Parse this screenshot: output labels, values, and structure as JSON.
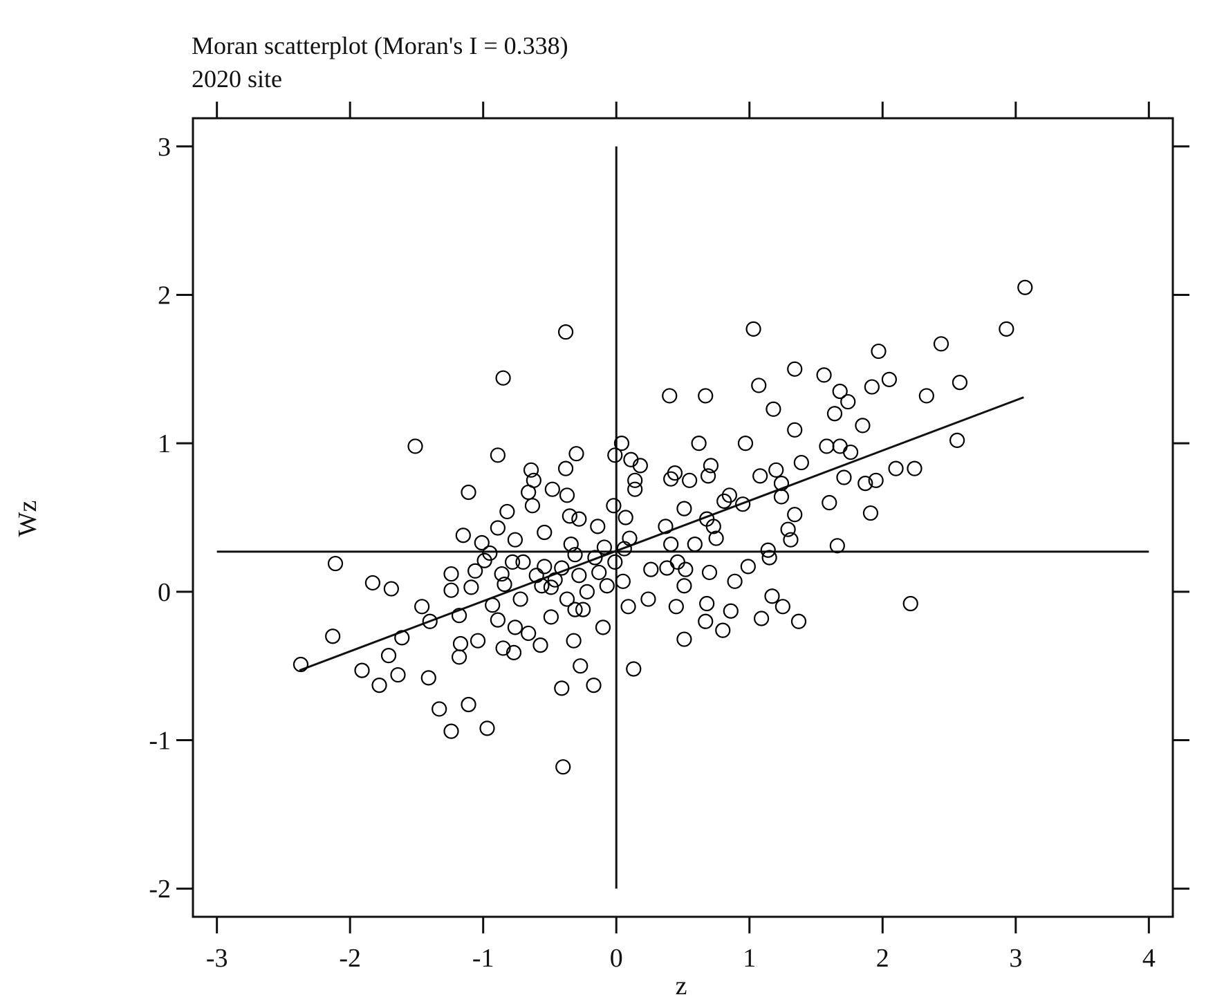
{
  "chart_data": {
    "type": "scatter",
    "title": "Moran scatterplot (Moran's I = 0.338)",
    "subtitle": "2020 site",
    "x_label": "z",
    "y_label": "Wz",
    "color": "#000000",
    "xlim": [
      -3.18,
      4.18
    ],
    "ylim": [
      -2.19,
      3.19
    ],
    "xticks": [
      -3,
      -2,
      -1,
      0,
      1,
      2,
      3,
      4
    ],
    "yticks": [
      -2,
      -1,
      0,
      1,
      2,
      3
    ],
    "vline": 0,
    "hline": 0.27,
    "fit_line": {
      "x": [
        -2.38,
        3.06
      ],
      "y": [
        -0.53,
        1.31
      ]
    },
    "x": [
      3.07,
      2.93,
      -0.38,
      1.03,
      -0.85,
      2.44,
      1.97,
      1.34,
      1.56,
      2.05,
      2.58,
      1.92,
      1.07,
      1.68,
      0.4,
      0.67,
      2.33,
      1.74,
      1.18,
      1.64,
      1.85,
      1.34,
      -1.51,
      0.04,
      0.62,
      0.97,
      1.58,
      1.68,
      2.56,
      1.76,
      -0.89,
      -0.3,
      -0.01,
      0.11,
      0.18,
      0.71,
      1.39,
      2.1,
      2.24,
      -0.38,
      -0.64,
      0.44,
      0.69,
      1.08,
      1.2,
      1.71,
      1.95,
      0.41,
      0.55,
      0.14,
      -0.62,
      1.87,
      0.14,
      1.24,
      -0.48,
      -1.11,
      -0.66,
      -0.37,
      0.85,
      0.81,
      1.24,
      1.6,
      -0.63,
      0.95,
      -0.02,
      0.51,
      1.34,
      1.91,
      -0.82,
      -0.35,
      -0.28,
      0.07,
      0.68,
      -0.14,
      0.37,
      1.29,
      -0.89,
      0.73,
      -1.15,
      -0.54,
      0.1,
      1.31,
      -0.76,
      0.75,
      -1.01,
      0.59,
      1.66,
      -0.34,
      0.41,
      1.14,
      -0.09,
      0.06,
      -0.95,
      1.15,
      -0.7,
      -2.11,
      0.46,
      0.99,
      -1.24,
      -1.06,
      0.7,
      -0.54,
      -0.41,
      0.26,
      0.38,
      0.52,
      -0.86,
      -0.28,
      -1.83,
      0.89,
      -1.69,
      -1.24,
      -1.09,
      0.51,
      -0.07,
      -0.49,
      1.17,
      2.21,
      -1.46,
      0.68,
      1.25,
      0.45,
      0.09,
      0.24,
      -1.18,
      0.86,
      -1.4,
      1.09,
      1.37,
      0.67,
      -0.89,
      -0.76,
      0.8,
      -0.1,
      -2.13,
      -1.61,
      -1.04,
      -0.32,
      0.51,
      -0.57,
      -0.85,
      -0.77,
      -1.71,
      -1.18,
      -2.37,
      -0.27,
      0.13,
      -1.91,
      -1.64,
      -1.41,
      -1.78,
      -0.41,
      -0.17,
      -1.33,
      -1.11,
      -0.97,
      -1.24,
      -0.4,
      -0.99,
      -0.84,
      -0.72,
      -0.6,
      -0.46,
      -0.37,
      -0.22,
      -0.13,
      -0.25,
      -0.49,
      -0.93,
      -0.78,
      -0.56,
      -0.31,
      -0.16,
      -0.01,
      0.05,
      -1.17,
      -0.66,
      -0.31
    ],
    "values": [
      2.05,
      1.77,
      1.75,
      1.77,
      1.44,
      1.67,
      1.62,
      1.5,
      1.46,
      1.43,
      1.41,
      1.38,
      1.39,
      1.35,
      1.32,
      1.32,
      1.32,
      1.28,
      1.23,
      1.2,
      1.12,
      1.09,
      0.98,
      1.0,
      1.0,
      1.0,
      0.98,
      0.98,
      1.02,
      0.94,
      0.92,
      0.93,
      0.92,
      0.89,
      0.85,
      0.85,
      0.87,
      0.83,
      0.83,
      0.83,
      0.82,
      0.8,
      0.78,
      0.78,
      0.82,
      0.77,
      0.75,
      0.76,
      0.75,
      0.75,
      0.75,
      0.73,
      0.69,
      0.73,
      0.69,
      0.67,
      0.67,
      0.65,
      0.65,
      0.61,
      0.64,
      0.6,
      0.58,
      0.59,
      0.58,
      0.56,
      0.52,
      0.53,
      0.54,
      0.51,
      0.49,
      0.5,
      0.49,
      0.44,
      0.44,
      0.42,
      0.43,
      0.44,
      0.38,
      0.4,
      0.36,
      0.35,
      0.35,
      0.36,
      0.33,
      0.32,
      0.31,
      0.32,
      0.32,
      0.28,
      0.3,
      0.29,
      0.26,
      0.23,
      0.2,
      0.19,
      0.2,
      0.17,
      0.12,
      0.14,
      0.13,
      0.17,
      0.16,
      0.15,
      0.16,
      0.15,
      0.12,
      0.11,
      0.06,
      0.07,
      0.02,
      0.01,
      0.03,
      0.04,
      0.04,
      0.03,
      -0.03,
      -0.08,
      -0.1,
      -0.08,
      -0.1,
      -0.1,
      -0.1,
      -0.05,
      -0.16,
      -0.13,
      -0.2,
      -0.18,
      -0.2,
      -0.2,
      -0.19,
      -0.24,
      -0.26,
      -0.24,
      -0.3,
      -0.31,
      -0.33,
      -0.33,
      -0.32,
      -0.36,
      -0.38,
      -0.41,
      -0.43,
      -0.44,
      -0.49,
      -0.5,
      -0.52,
      -0.53,
      -0.56,
      -0.58,
      -0.63,
      -0.65,
      -0.63,
      -0.79,
      -0.76,
      -0.92,
      -0.94,
      -1.18,
      0.21,
      0.05,
      -0.05,
      0.11,
      0.08,
      -0.05,
      0.0,
      0.13,
      -0.12,
      -0.17,
      -0.09,
      0.2,
      0.04,
      0.25,
      0.23,
      0.2,
      0.07,
      -0.35,
      -0.28,
      -0.12
    ]
  }
}
